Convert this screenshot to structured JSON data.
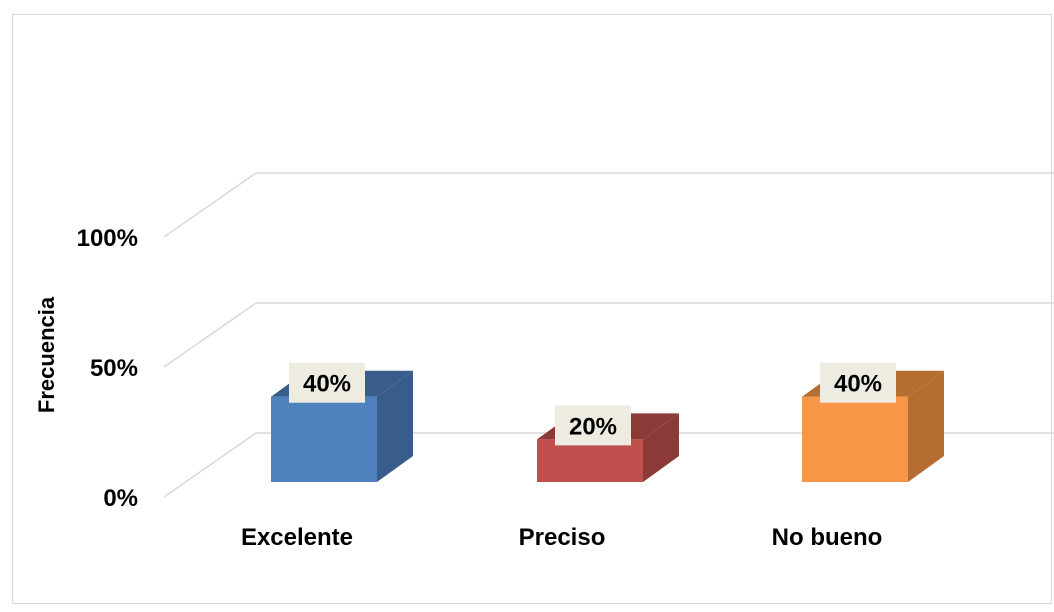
{
  "chart_data": {
    "type": "bar",
    "style": "3d-column",
    "categories": [
      "Excelente",
      "Preciso",
      "No bueno"
    ],
    "values": [
      40,
      20,
      40
    ],
    "data_labels": [
      "40%",
      "20%",
      "40%"
    ],
    "ylabel": "Frecuencia",
    "xlabel": "",
    "title": "",
    "ylim": [
      0,
      100
    ],
    "y_ticks": [
      "0%",
      "50%",
      "100%"
    ],
    "grid": true,
    "legend": "none",
    "colors": [
      "#4f81bd",
      "#c0504d",
      "#f79646"
    ],
    "side_colors": [
      "#385d8a",
      "#8c3a38",
      "#b66d30"
    ],
    "label_background": "#eeece1"
  }
}
